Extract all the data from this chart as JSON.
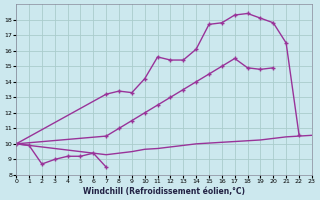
{
  "background_color": "#cce8ee",
  "grid_color": "#aacccc",
  "line_color": "#993399",
  "xlabel": "Windchill (Refroidissement éolien,°C)",
  "xlim": [
    0,
    23
  ],
  "ylim": [
    8,
    19
  ],
  "yticks": [
    8,
    9,
    10,
    11,
    12,
    13,
    14,
    15,
    16,
    17,
    18
  ],
  "xticks": [
    0,
    1,
    2,
    3,
    4,
    5,
    6,
    7,
    8,
    9,
    10,
    11,
    12,
    13,
    14,
    15,
    16,
    17,
    18,
    19,
    20,
    21,
    22,
    23
  ],
  "line_upper_x": [
    0,
    7,
    8,
    9,
    10,
    11,
    12,
    13,
    14,
    15,
    16,
    17,
    18,
    19,
    20,
    21,
    22
  ],
  "line_upper_y": [
    10.0,
    13.2,
    13.4,
    13.3,
    14.2,
    15.6,
    15.4,
    15.4,
    16.1,
    17.7,
    17.8,
    18.3,
    18.4,
    18.1,
    17.8,
    16.5,
    10.6
  ],
  "line_mid_x": [
    0,
    7,
    8,
    9,
    10,
    11,
    12,
    13,
    14,
    15,
    16,
    17,
    18,
    19,
    20
  ],
  "line_mid_y": [
    10.0,
    10.5,
    11.0,
    11.5,
    12.0,
    12.5,
    13.0,
    13.5,
    14.0,
    14.5,
    15.0,
    15.5,
    14.9,
    14.8,
    14.9
  ],
  "line_low_x": [
    0,
    7,
    8,
    9,
    10,
    11,
    12,
    13,
    14,
    15,
    16,
    17,
    18,
    19,
    20,
    21,
    22,
    23
  ],
  "line_low_y": [
    10.0,
    9.3,
    9.4,
    9.5,
    9.65,
    9.7,
    9.8,
    9.9,
    10.0,
    10.05,
    10.1,
    10.15,
    10.2,
    10.25,
    10.35,
    10.45,
    10.5,
    10.55
  ],
  "line_zigzag_x": [
    0,
    1,
    2,
    3,
    4,
    5,
    6,
    7
  ],
  "line_zigzag_y": [
    10.0,
    9.9,
    8.7,
    9.0,
    9.2,
    9.2,
    9.4,
    8.5
  ]
}
